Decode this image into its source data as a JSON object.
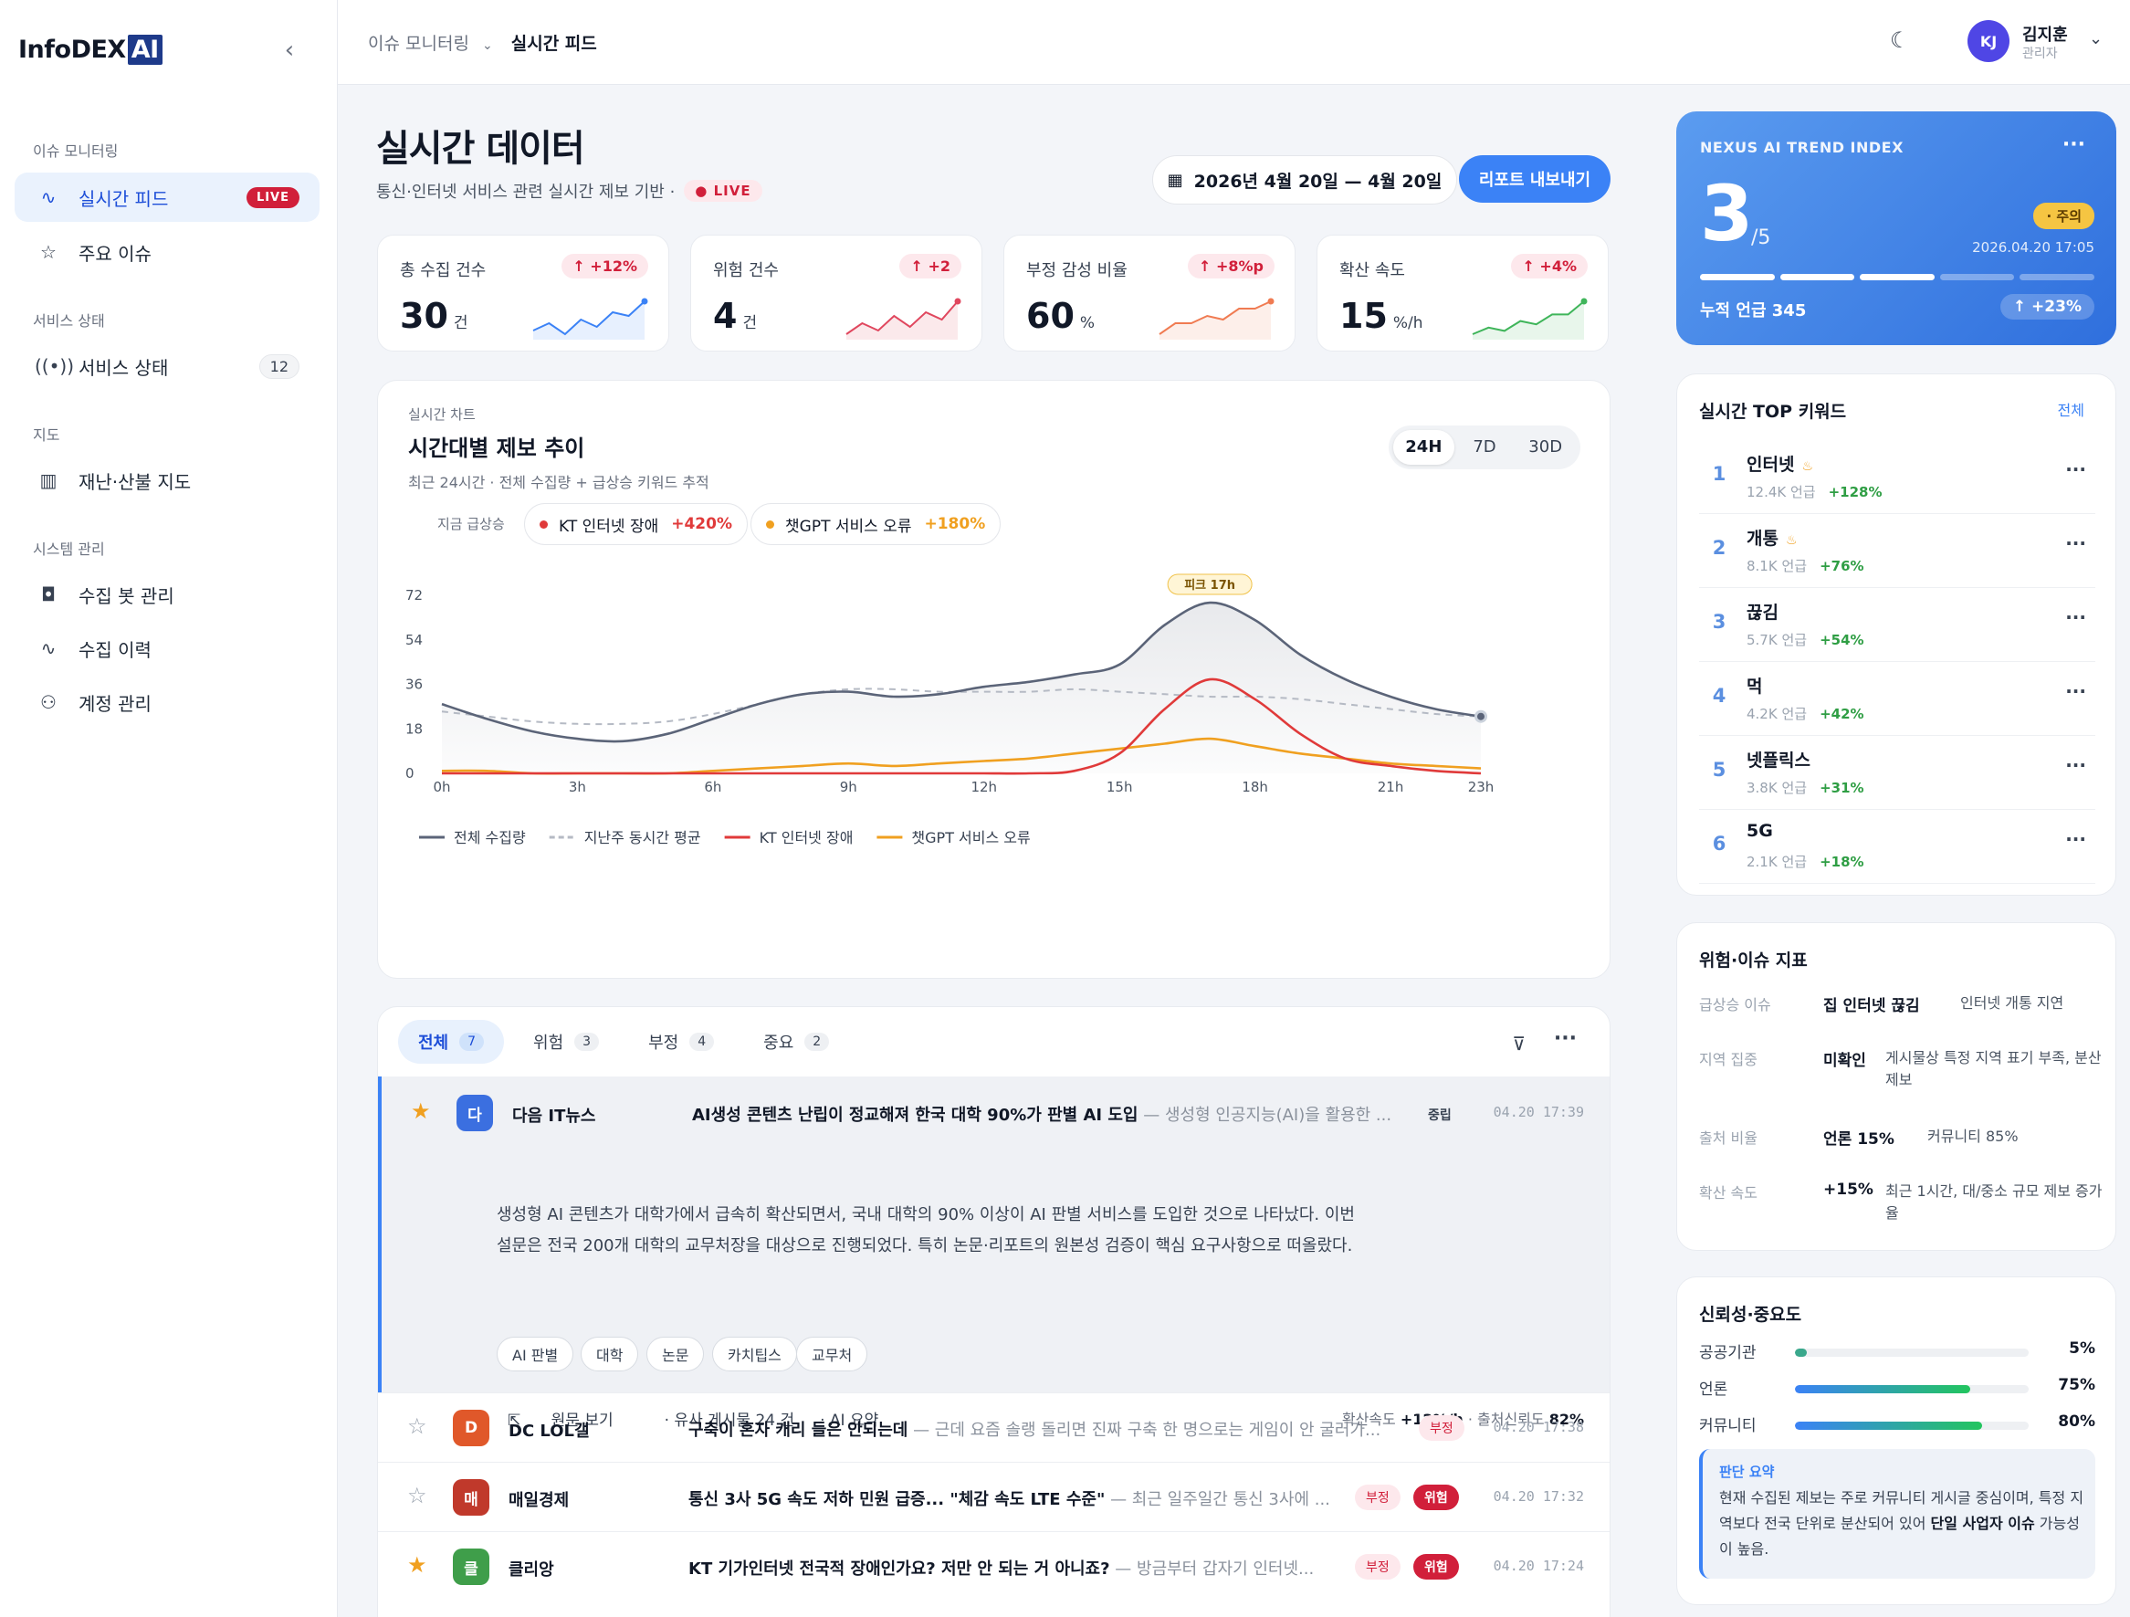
{
  "sidebar": {
    "logo_main": "InfoDEX",
    "logo_ai": "AI",
    "sections": [
      "이슈 모니터링",
      "서비스 상태",
      "지도",
      "시스템 관리"
    ],
    "items": [
      {
        "label": "실시간 피드",
        "badge": "LIVE",
        "icon": "pulse-icon"
      },
      {
        "label": "주요 이슈",
        "icon": "star-icon"
      },
      {
        "label": "서비스 상태",
        "count": "12",
        "icon": "broadcast-icon"
      },
      {
        "label": "재난·산불 지도",
        "icon": "map-icon"
      },
      {
        "label": "수집 봇 관리",
        "icon": "bot-icon"
      },
      {
        "label": "수집 이력",
        "icon": "activity-icon"
      },
      {
        "label": "계정 관리",
        "icon": "user-icon"
      }
    ]
  },
  "topbar": {
    "crumb_parent": "이슈 모니터링",
    "crumb_current": "실시간 피드",
    "user_initials": "KJ",
    "user_name": "김지훈",
    "user_role": "관리자"
  },
  "page": {
    "title": "실시간 데이터",
    "subtitle": "통신·인터넷 서비스 관련 실시간 제보 기반 ·",
    "live": "LIVE",
    "date_range": "2026년 4월 20일 — 4월 20일",
    "export_label": "리포트 내보내기"
  },
  "kpis": [
    {
      "label": "총 수집 건수",
      "delta": "↑ +12%",
      "value": "30",
      "unit": "건",
      "color": "#3b82f6",
      "spark": [
        4,
        6,
        3,
        7,
        5,
        9,
        8,
        12
      ]
    },
    {
      "label": "위험 건수",
      "delta": "↑ +2",
      "value": "4",
      "unit": "건",
      "color": "#e0475e",
      "spark": [
        3,
        6,
        4,
        8,
        5,
        9,
        7,
        12
      ]
    },
    {
      "label": "부정 감성 비율",
      "delta": "↑ +8%p",
      "value": "60",
      "unit": "%",
      "color": "#f07b52",
      "spark": [
        2,
        5,
        5,
        7,
        6,
        9,
        9,
        11
      ]
    },
    {
      "label": "확산 속도",
      "delta": "↑ +4%",
      "value": "15",
      "unit": "%/h",
      "color": "#3fb55a",
      "spark": [
        2,
        4,
        3,
        6,
        5,
        8,
        8,
        12
      ]
    }
  ],
  "chart_card": {
    "eyebrow": "실시간 차트",
    "title": "시간대별 제보 추이",
    "subtitle": "최근 24시간 · 전체 수집량 + 급상승 키워드 추적",
    "ranges": [
      "24H",
      "7D",
      "30D"
    ],
    "surge_label": "지금 급상승",
    "chips": [
      {
        "name": "KT 인터넷 장애",
        "pct": "+420%",
        "color": "#e03a3a"
      },
      {
        "name": "챗GPT 서비스 오류",
        "pct": "+180%",
        "color": "#f0a020"
      }
    ]
  },
  "chart_data": {
    "type": "line",
    "x": [
      "0h",
      "1h",
      "2h",
      "3h",
      "4h",
      "5h",
      "6h",
      "7h",
      "8h",
      "9h",
      "10h",
      "11h",
      "12h",
      "13h",
      "14h",
      "15h",
      "16h",
      "17h",
      "18h",
      "19h",
      "20h",
      "21h",
      "22h",
      "23h"
    ],
    "xticks": [
      "0h",
      "3h",
      "6h",
      "9h",
      "12h",
      "15h",
      "18h",
      "21h",
      "23h"
    ],
    "yticks": [
      "0",
      "18",
      "36",
      "54",
      "72"
    ],
    "ylim": [
      0,
      72
    ],
    "annotation": "피크 17h",
    "series": [
      {
        "name": "전체 수집량",
        "color": "#5b6478",
        "style": "solid",
        "values": [
          28,
          22,
          17,
          14,
          13,
          16,
          22,
          28,
          32,
          33,
          31,
          32,
          35,
          37,
          40,
          44,
          60,
          69,
          62,
          48,
          38,
          31,
          26,
          23
        ]
      },
      {
        "name": "지난주 동시간 평균",
        "color": "#b5bac4",
        "style": "dashed",
        "values": [
          25,
          23,
          21,
          20,
          20,
          21,
          24,
          28,
          32,
          34,
          34,
          33,
          33,
          33,
          34,
          33,
          32,
          31,
          31,
          30,
          28,
          26,
          24,
          23
        ]
      },
      {
        "name": "KT 인터넷 장애",
        "color": "#e03a3a",
        "style": "solid",
        "values": [
          0,
          0,
          0,
          0,
          0,
          0,
          0,
          0,
          0,
          0,
          0,
          0,
          0,
          0,
          1,
          8,
          26,
          38,
          30,
          16,
          6,
          3,
          1,
          0
        ]
      },
      {
        "name": "챗GPT 서비스 오류",
        "color": "#f0a020",
        "style": "solid",
        "values": [
          1,
          1,
          0,
          0,
          0,
          0,
          1,
          2,
          3,
          4,
          3,
          4,
          5,
          6,
          8,
          10,
          12,
          14,
          11,
          8,
          6,
          4,
          3,
          2
        ]
      }
    ]
  },
  "list": {
    "tabs": [
      {
        "label": "전체",
        "count": "7"
      },
      {
        "label": "위험",
        "count": "3"
      },
      {
        "label": "부정",
        "count": "4"
      },
      {
        "label": "중요",
        "count": "2"
      }
    ],
    "expanded": {
      "source_initial": "다",
      "source": "다음 IT뉴스",
      "source_color": "#3b6fe0",
      "title": "AI생성 콘텐츠 난립이 정교해져 한국 대학 90%가 판별 AI 도입",
      "excerpt": " — 생성형 인공지능(AI)을 활용한 ...",
      "tag": "중립",
      "time": "04.20 17:39",
      "body": "생성형 AI 콘텐츠가 대학가에서 급속히 확산되면서, 국내 대학의 90% 이상이 AI 판별 서비스를 도입한 것으로 나타났다. 이번 설문은 전국 200개 대학의 교무처장을 대상으로 진행되었다. 특히 논문·리포트의 원본성 검증이 핵심 요구사항으로 떠올랐다.",
      "keywords": [
        "AI 판별",
        "대학",
        "논문",
        "카치팁스",
        "교무처"
      ],
      "act_view": "원문 보기",
      "act_similar": "· 유사 게시물  24  건",
      "act_summary": "· AI 요약",
      "m_speed_label": "확산속도 ",
      "m_speed": "+12%/h",
      "m_cred_label": " · 출처신뢰도 ",
      "m_cred": "82%"
    },
    "rows": [
      {
        "star": false,
        "initial": "D",
        "color": "#e0582a",
        "source": "DC LOL갤",
        "title": "구축이 혼자 캐리 들은 안되는데",
        "excerpt": " — 근데 요즘 솔랭 돌리면 진짜 구축 한 명으로는 게임이 안 굴러가...",
        "tags": [
          "부정"
        ],
        "time": "04.20 17:38"
      },
      {
        "star": false,
        "initial": "매",
        "color": "#c0392b",
        "source": "매일경제",
        "title": "통신 3사 5G 속도 저하 민원 급증... \"체감 속도 LTE 수준\"",
        "excerpt": " — 최근 일주일간 통신 3사에 ...",
        "tags": [
          "부정",
          "위험"
        ],
        "time": "04.20 17:32"
      },
      {
        "star": true,
        "initial": "클",
        "color": "#3f9e4a",
        "source": "클리앙",
        "title": "KT 기가인터넷 전국적 장애인가요? 저만 안 되는 거 아니죠?",
        "excerpt": " — 방금부터 갑자기 인터넷...",
        "tags": [
          "부정",
          "위험"
        ],
        "time": "04.20 17:24"
      }
    ]
  },
  "trend_card": {
    "eyebrow": "NEXUS AI TREND INDEX",
    "score": "3",
    "denom": "/5",
    "level": "· 주의",
    "date": "2026.04.20 17:05",
    "cumulative": "누적 언급 345",
    "change": "↑ +23%",
    "level_value": 3,
    "level_max": 5
  },
  "top_keywords": {
    "title": "실시간 TOP 키워드",
    "link": "전체",
    "items": [
      {
        "rank": "1",
        "name": "인터넷",
        "hot": true,
        "mentions": "12.4K 언급",
        "change": "+128%"
      },
      {
        "rank": "2",
        "name": "개통",
        "hot": true,
        "mentions": "8.1K 언급",
        "change": "+76%"
      },
      {
        "rank": "3",
        "name": "끊김",
        "hot": false,
        "mentions": "5.7K 언급",
        "change": "+54%"
      },
      {
        "rank": "4",
        "name": "먹",
        "hot": false,
        "mentions": "4.2K 언급",
        "change": "+42%"
      },
      {
        "rank": "5",
        "name": "넷플릭스",
        "hot": false,
        "mentions": "3.8K 언급",
        "change": "+31%"
      },
      {
        "rank": "6",
        "name": "5G",
        "hot": false,
        "mentions": "2.1K 언급",
        "change": "+18%"
      }
    ]
  },
  "risk_panel": {
    "title": "위험·이슈 지표",
    "rows": [
      {
        "label": "급상승 이슈",
        "value": "집 인터넷 끊김",
        "extra": "인터넷 개통 지연"
      },
      {
        "label": "지역 집중",
        "value": "미확인",
        "extra": "게시물상 특정 지역 표기 부족, 분산 제보"
      },
      {
        "label": "출처 비율",
        "value": "언론 15%",
        "extra": "커뮤니티 85%"
      },
      {
        "label": "확산 속도",
        "value": "+15%",
        "extra": "최근 1시간, 대/중소 규모 제보 증가율"
      }
    ]
  },
  "cred_panel": {
    "title": "신뢰성·중요도",
    "rows": [
      {
        "label": "공공기관",
        "pct": "5%",
        "value": 5
      },
      {
        "label": "언론",
        "pct": "75%",
        "value": 75
      },
      {
        "label": "커뮤니티",
        "pct": "80%",
        "value": 80
      }
    ],
    "summary_title": "판단 요약",
    "summary_pre": "현재 수집된 제보는 주로 커뮤니티 게시글 중심이며, 특정 지역보다 전국 단위로 분산되어 있어 ",
    "summary_bold": "단일 사업자 이슈",
    "summary_post": " 가능성이 높음."
  }
}
